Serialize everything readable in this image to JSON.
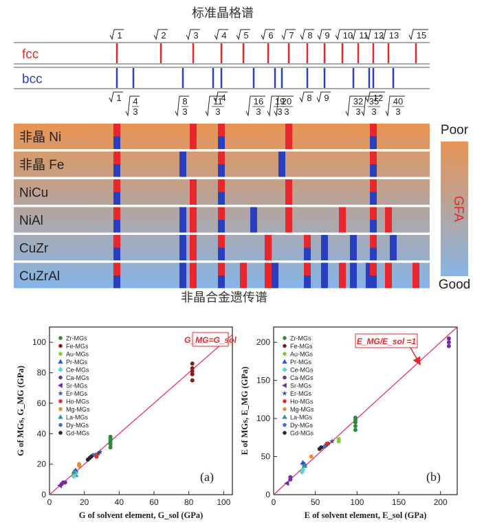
{
  "top": {
    "title": "标准晶格谱",
    "bottom_title": "非晶合金遗传谱",
    "positions": [
      "1",
      "4/3",
      "2",
      "8/3",
      "3",
      "11/3",
      "4",
      "16/3",
      "5",
      "19/3",
      "6",
      "20/3",
      "7",
      "8",
      "9",
      "32/3",
      "10",
      "35/3",
      "11",
      "12",
      "13",
      "40/3",
      "15"
    ],
    "sqrt_labels": [
      "1",
      "2",
      "3",
      "4",
      "5",
      "6",
      "7",
      "8",
      "9",
      "10",
      "11",
      "12",
      "13",
      "15"
    ],
    "fcc": {
      "label": "fcc",
      "color": "#e8262b",
      "lines": [
        "1",
        "2",
        "3",
        "4",
        "5",
        "6",
        "7",
        "8",
        "9",
        "10",
        "11",
        "12",
        "13",
        "15"
      ]
    },
    "bcc": {
      "label": "bcc",
      "color": "#2a3fbf",
      "lines": [
        "1",
        "4/3",
        "8/3",
        "11/3",
        "4",
        "16/3",
        "19/3",
        "20/3",
        "8",
        "9",
        "32/3",
        "35/3",
        "12",
        "40/3"
      ]
    },
    "bcc_labels": [
      {
        "pos": "1",
        "n": "1",
        "d": ""
      },
      {
        "pos": "4/3",
        "n": "4",
        "d": "3"
      },
      {
        "pos": "8/3",
        "n": "8",
        "d": "3"
      },
      {
        "pos": "11/3",
        "n": "11",
        "d": "3"
      },
      {
        "pos": "4",
        "n": "4",
        "d": ""
      },
      {
        "pos": "16/3",
        "n": "16",
        "d": "3"
      },
      {
        "pos": "19/3",
        "n": "19",
        "d": "3"
      },
      {
        "pos": "20/3",
        "n": "20",
        "d": "3"
      },
      {
        "pos": "8",
        "n": "8",
        "d": ""
      },
      {
        "pos": "9",
        "n": "9",
        "d": ""
      },
      {
        "pos": "32/3",
        "n": "32",
        "d": "3"
      },
      {
        "pos": "35/3",
        "n": "35",
        "d": "3"
      },
      {
        "pos": "12",
        "n": "12",
        "d": ""
      },
      {
        "pos": "40/3",
        "n": "40",
        "d": "3"
      }
    ],
    "rows": [
      {
        "label": "非晶 Ni",
        "bars": [
          [
            "1",
            "half"
          ],
          [
            "3",
            "red"
          ],
          [
            "4",
            "half"
          ],
          [
            "7",
            "red"
          ],
          [
            "12",
            "half"
          ]
        ]
      },
      {
        "label": "非晶 Fe",
        "bars": [
          [
            "1",
            "half"
          ],
          [
            "8/3",
            "blue"
          ],
          [
            "4",
            "half"
          ],
          [
            "20/3",
            "blue"
          ],
          [
            "12",
            "half"
          ]
        ]
      },
      {
        "label": "NiCu",
        "bars": [
          [
            "1",
            "half"
          ],
          [
            "3",
            "red"
          ],
          [
            "4",
            "half"
          ],
          [
            "7",
            "red"
          ],
          [
            "12",
            "half"
          ]
        ]
      },
      {
        "label": "NiAl",
        "bars": [
          [
            "1",
            "half"
          ],
          [
            "8/3",
            "blue"
          ],
          [
            "3",
            "red"
          ],
          [
            "4",
            "half"
          ],
          [
            "16/3",
            "blue"
          ],
          [
            "7",
            "red"
          ],
          [
            "10",
            "red"
          ],
          [
            "12",
            "half"
          ],
          [
            "13",
            "red"
          ]
        ]
      },
      {
        "label": "CuZr",
        "bars": [
          [
            "1",
            "half"
          ],
          [
            "8/3",
            "blue"
          ],
          [
            "3",
            "red"
          ],
          [
            "4",
            "half"
          ],
          [
            "6",
            "red"
          ],
          [
            "8",
            "half"
          ],
          [
            "9",
            "blue"
          ],
          [
            "32/3",
            "blue"
          ],
          [
            "12",
            "half"
          ],
          [
            "40/3",
            "blue"
          ]
        ]
      },
      {
        "label": "CuZrAl",
        "bars": [
          [
            "1",
            "half"
          ],
          [
            "8/3",
            "blue"
          ],
          [
            "3",
            "red"
          ],
          [
            "4",
            "half"
          ],
          [
            "5",
            "red"
          ],
          [
            "6",
            "red"
          ],
          [
            "19/3",
            "blue"
          ],
          [
            "8",
            "half"
          ],
          [
            "9",
            "blue"
          ],
          [
            "10",
            "red"
          ],
          [
            "32/3",
            "blue"
          ],
          [
            "35/3",
            "blue"
          ],
          [
            "12",
            "half"
          ],
          [
            "13",
            "red"
          ],
          [
            "15",
            "red"
          ]
        ]
      }
    ],
    "gfa": {
      "poor": "Poor",
      "good": "Good",
      "label": "GFA",
      "top_color": "#e89452",
      "bottom_color": "#86b4e6",
      "label_color": "#e8262b"
    }
  },
  "chart_data": [
    {
      "type": "scatter",
      "panel": "(a)",
      "xlabel": "G of solvent element, G_sol (GPa)",
      "ylabel": "G of MGs, G_MG (GPa)",
      "xlim": [
        0,
        105
      ],
      "ylim": [
        0,
        110
      ],
      "xticks": [
        0,
        20,
        40,
        60,
        80,
        100
      ],
      "yticks": [
        0,
        20,
        40,
        60,
        80,
        100
      ],
      "fit_line": {
        "label": "G_MG=G_sol",
        "slope": 1,
        "color": "#e8307a"
      },
      "series": [
        {
          "name": "Zr-MGs",
          "color": "#2e8b3a",
          "marker": "circle",
          "points": [
            [
              35,
              31
            ],
            [
              35,
              33
            ],
            [
              35,
              35
            ],
            [
              35,
              36
            ],
            [
              35,
              37
            ],
            [
              35,
              38
            ]
          ]
        },
        {
          "name": "Fe-MGs",
          "color": "#8b1a1a",
          "marker": "circle",
          "points": [
            [
              82,
              75
            ],
            [
              82,
              79
            ],
            [
              82,
              81
            ],
            [
              82,
              83
            ],
            [
              82,
              86
            ]
          ]
        },
        {
          "name": "Au-MGs",
          "color": "#7ccd3a",
          "marker": "circle",
          "points": [
            [
              27,
              26
            ],
            [
              28,
              27
            ]
          ]
        },
        {
          "name": "Pr-MGs",
          "color": "#3050d0",
          "marker": "triangle",
          "points": [
            [
              15,
              16
            ],
            [
              15,
              13
            ]
          ]
        },
        {
          "name": "Ce-MGs",
          "color": "#5dd3cc",
          "marker": "diamond",
          "points": [
            [
              14,
              12
            ],
            [
              15,
              14
            ]
          ]
        },
        {
          "name": "Ca-MGs",
          "color": "#7a2c9a",
          "marker": "circle",
          "points": [
            [
              8,
              8
            ],
            [
              7,
              7
            ],
            [
              9,
              8
            ]
          ]
        },
        {
          "name": "Sr-MGs",
          "color": "#6a2ab0",
          "marker": "tri-left",
          "points": [
            [
              6,
              6
            ]
          ]
        },
        {
          "name": "Er-MGs",
          "color": "#3a3aa0",
          "marker": "star",
          "points": [
            [
              28,
              27
            ],
            [
              29,
              28
            ]
          ]
        },
        {
          "name": "Ho-MGs",
          "color": "#e02a2a",
          "marker": "circle",
          "points": [
            [
              26,
              26
            ],
            [
              27,
              25
            ]
          ]
        },
        {
          "name": "Mg-MGs",
          "color": "#f08a30",
          "marker": "circle",
          "points": [
            [
              17,
              20
            ],
            [
              17,
              19
            ]
          ]
        },
        {
          "name": "La-MGs",
          "color": "#2a9a8a",
          "marker": "triangle",
          "points": [
            [
              14,
              15
            ]
          ]
        },
        {
          "name": "Dy-MGs",
          "color": "#4a6ad0",
          "marker": "circle",
          "points": [
            [
              25,
              26
            ]
          ]
        },
        {
          "name": "Gd-MGs",
          "color": "#2a2a2a",
          "marker": "circle",
          "points": [
            [
              22,
              23
            ],
            [
              23,
              24
            ],
            [
              24,
              25
            ]
          ]
        }
      ]
    },
    {
      "type": "scatter",
      "panel": "(b)",
      "xlabel": "E of solvent element, E_sol (GPa)",
      "ylabel": "E of MGs, E_MG (GPa)",
      "xlim": [
        0,
        220
      ],
      "ylim": [
        0,
        220
      ],
      "xticks": [
        0,
        50,
        100,
        150,
        200
      ],
      "yticks": [
        0,
        50,
        100,
        150,
        200
      ],
      "fit_line": {
        "label": "E_MG/E_sol =1",
        "slope": 1,
        "color": "#e8307a",
        "arrow_from": [
          145,
          190
        ],
        "arrow_to": [
          175,
          172
        ]
      },
      "series": [
        {
          "name": "Zr-MGs",
          "color": "#2e8b3a",
          "marker": "circle",
          "points": [
            [
              98,
              85
            ],
            [
              98,
              90
            ],
            [
              98,
              95
            ],
            [
              98,
              98
            ],
            [
              98,
              101
            ]
          ]
        },
        {
          "name": "Fe-MGs",
          "color": "#8b1a1a",
          "marker": "circle",
          "points": [
            [
              63,
              65
            ],
            [
              65,
              67
            ]
          ]
        },
        {
          "name": "Au-MGs",
          "color": "#7ccd3a",
          "marker": "circle",
          "points": [
            [
              78,
              70
            ],
            [
              78,
              73
            ]
          ]
        },
        {
          "name": "Pr-MGs",
          "color": "#3050d0",
          "marker": "triangle",
          "points": [
            [
              35,
              42
            ],
            [
              37,
              40
            ]
          ]
        },
        {
          "name": "Ce-MGs",
          "color": "#5dd3cc",
          "marker": "diamond",
          "points": [
            [
              34,
              30
            ],
            [
              35,
              33
            ]
          ]
        },
        {
          "name": "Ca-MGs",
          "color": "#7a2c9a",
          "marker": "circle",
          "points": [
            [
              20,
              20
            ],
            [
              20,
              23
            ],
            [
              210,
              195
            ],
            [
              210,
              200
            ],
            [
              210,
              205
            ]
          ]
        },
        {
          "name": "Sr-MGs",
          "color": "#6a2ab0",
          "marker": "tri-left",
          "points": [
            [
              16,
              15
            ]
          ]
        },
        {
          "name": "Er-MGs",
          "color": "#3a3aa0",
          "marker": "star",
          "points": [
            [
              70,
              70
            ]
          ]
        },
        {
          "name": "Ho-MGs",
          "color": "#e02a2a",
          "marker": "circle",
          "points": [
            [
              64,
              67
            ]
          ]
        },
        {
          "name": "Mg-MGs",
          "color": "#f08a30",
          "marker": "circle",
          "points": [
            [
              45,
              50
            ]
          ]
        },
        {
          "name": "La-MGs",
          "color": "#2a9a8a",
          "marker": "triangle",
          "points": [
            [
              37,
              38
            ]
          ]
        },
        {
          "name": "Dy-MGs",
          "color": "#4a6ad0",
          "marker": "circle",
          "points": [
            [
              61,
              63
            ]
          ]
        },
        {
          "name": "Gd-MGs",
          "color": "#2a2a2a",
          "marker": "circle",
          "points": [
            [
              55,
              60
            ],
            [
              57,
              62
            ]
          ]
        }
      ]
    }
  ]
}
